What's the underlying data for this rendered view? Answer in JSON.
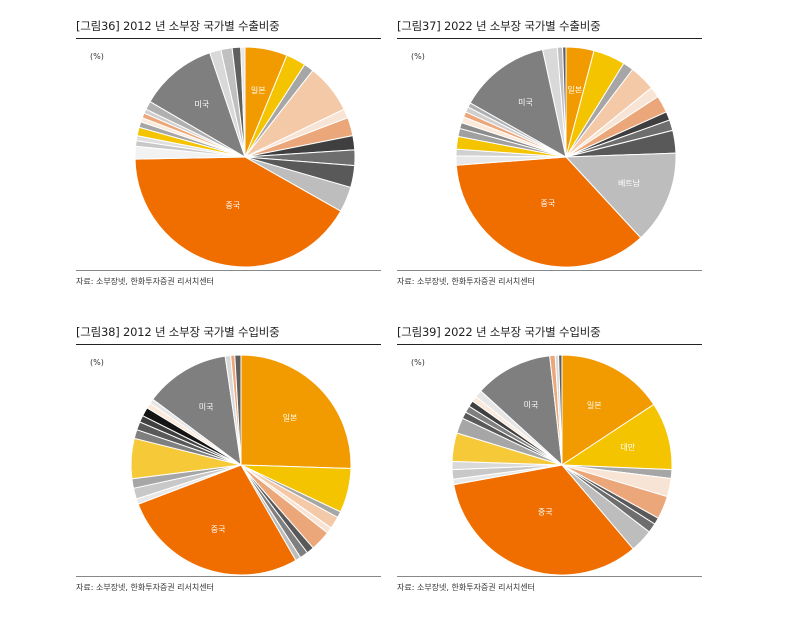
{
  "chart_data": [
    {
      "type": "pie",
      "title": "[그림36]  2012 년 소부장 국가별 수출비중",
      "unit": "(%)",
      "source": "자료: 소부장넷, 한화투자증권 리서치센터",
      "slices": [
        {
          "label": "일본",
          "value": 6.0,
          "color": "#f29b00"
        },
        {
          "label": "",
          "value": 2.8,
          "color": "#f5c400"
        },
        {
          "label": "",
          "value": 1.4,
          "color": "#a6a6a6"
        },
        {
          "label": "",
          "value": 7.0,
          "color": "#f4c9a8"
        },
        {
          "label": "",
          "value": 1.3,
          "color": "#f8e4d4"
        },
        {
          "label": "",
          "value": 2.6,
          "color": "#eba77a"
        },
        {
          "label": "",
          "value": 2.0,
          "color": "#3f3f3f"
        },
        {
          "label": "",
          "value": 2.2,
          "color": "#6e6e6e"
        },
        {
          "label": "",
          "value": 3.1,
          "color": "#595959"
        },
        {
          "label": "",
          "value": 3.6,
          "color": "#bdbdbd"
        },
        {
          "label": "중국",
          "value": 40.0,
          "color": "#f06e00"
        },
        {
          "label": "",
          "value": 1.8,
          "color": "#f2f2f2"
        },
        {
          "label": "",
          "value": 0.8,
          "color": "#c8c8c8"
        },
        {
          "label": "",
          "value": 0.7,
          "color": "#dedede"
        },
        {
          "label": "",
          "value": 1.2,
          "color": "#f5c400"
        },
        {
          "label": "",
          "value": 0.8,
          "color": "#a6a6a6"
        },
        {
          "label": "",
          "value": 0.6,
          "color": "#fbe9da"
        },
        {
          "label": "",
          "value": 0.7,
          "color": "#eba77a"
        },
        {
          "label": "",
          "value": 0.6,
          "color": "#cfcfcf"
        },
        {
          "label": "",
          "value": 1.2,
          "color": "#b0b0b0"
        },
        {
          "label": "미국",
          "value": 11.0,
          "color": "#7f7f7f"
        },
        {
          "label": "",
          "value": 1.6,
          "color": "#d9d9d9"
        },
        {
          "label": "",
          "value": 1.6,
          "color": "#c0c0c0"
        },
        {
          "label": "",
          "value": 1.2,
          "color": "#5f5f5f"
        },
        {
          "label": "",
          "value": 0.6,
          "color": "#e6e6e6"
        }
      ]
    },
    {
      "type": "pie",
      "title": "[그림37]  2022 년 소부장 국가별 수출비중",
      "unit": "(%)",
      "source": "자료: 소부장넷, 한화투자증권 리서치센터",
      "slices": [
        {
          "label": "일본",
          "value": 4.2,
          "color": "#f29b00"
        },
        {
          "label": "",
          "value": 4.8,
          "color": "#f5c400"
        },
        {
          "label": "",
          "value": 1.6,
          "color": "#a6a6a6"
        },
        {
          "label": "",
          "value": 3.9,
          "color": "#f4c9a8"
        },
        {
          "label": "",
          "value": 1.6,
          "color": "#f8e4d4"
        },
        {
          "label": "",
          "value": 2.6,
          "color": "#eba77a"
        },
        {
          "label": "",
          "value": 1.3,
          "color": "#3f3f3f"
        },
        {
          "label": "",
          "value": 1.6,
          "color": "#6e6e6e"
        },
        {
          "label": "",
          "value": 3.4,
          "color": "#595959"
        },
        {
          "label": "베트남",
          "value": 14.0,
          "color": "#bdbdbd"
        },
        {
          "label": "중국",
          "value": 36.5,
          "color": "#f06e00"
        },
        {
          "label": "",
          "value": 1.4,
          "color": "#e8e8e8"
        },
        {
          "label": "",
          "value": 1.0,
          "color": "#d0d0d0"
        },
        {
          "label": "",
          "value": 1.9,
          "color": "#f5c400"
        },
        {
          "label": "",
          "value": 1.2,
          "color": "#a0a0a0"
        },
        {
          "label": "",
          "value": 0.9,
          "color": "#8c8c8c"
        },
        {
          "label": "",
          "value": 0.9,
          "color": "#fbe9da"
        },
        {
          "label": "",
          "value": 0.8,
          "color": "#eba77a"
        },
        {
          "label": "",
          "value": 0.8,
          "color": "#cfcfcf"
        },
        {
          "label": "",
          "value": 0.7,
          "color": "#b0b0b0"
        },
        {
          "label": "미국",
          "value": 13.7,
          "color": "#7f7f7f"
        },
        {
          "label": "",
          "value": 2.2,
          "color": "#d9d9d9"
        },
        {
          "label": "",
          "value": 0.8,
          "color": "#c0c0c0"
        },
        {
          "label": "",
          "value": 0.5,
          "color": "#5f5f5f"
        }
      ]
    },
    {
      "type": "pie",
      "title": "[그림38]  2012 년 소부장 국가별 수입비중",
      "unit": "(%)",
      "source": "자료: 소부장넷, 한화투자증권 리서치센터",
      "slices": [
        {
          "label": "일본",
          "value": 25.5,
          "color": "#f29b00"
        },
        {
          "label": "",
          "value": 6.5,
          "color": "#f5c400"
        },
        {
          "label": "",
          "value": 0.9,
          "color": "#a6a6a6"
        },
        {
          "label": "",
          "value": 1.8,
          "color": "#f4c9a8"
        },
        {
          "label": "",
          "value": 0.9,
          "color": "#f8e4d4"
        },
        {
          "label": "",
          "value": 3.0,
          "color": "#eba77a"
        },
        {
          "label": "",
          "value": 1.1,
          "color": "#595959"
        },
        {
          "label": "",
          "value": 1.2,
          "color": "#7f7f7f"
        },
        {
          "label": "",
          "value": 0.8,
          "color": "#bdbdbd"
        },
        {
          "label": "중국",
          "value": 27.5,
          "color": "#f06e00"
        },
        {
          "label": "",
          "value": 0.8,
          "color": "#e8e8e8"
        },
        {
          "label": "",
          "value": 1.6,
          "color": "#c8c8c8"
        },
        {
          "label": "",
          "value": 1.4,
          "color": "#a6a6a6"
        },
        {
          "label": "",
          "value": 5.9,
          "color": "#f5c938"
        },
        {
          "label": "",
          "value": 1.3,
          "color": "#7f7f7f"
        },
        {
          "label": "",
          "value": 1.2,
          "color": "#595959"
        },
        {
          "label": "",
          "value": 1.0,
          "color": "#3f3f3f"
        },
        {
          "label": "",
          "value": 1.3,
          "color": "#141414"
        },
        {
          "label": "",
          "value": 0.8,
          "color": "#fbe9da"
        },
        {
          "label": "",
          "value": 0.7,
          "color": "#e6e6e6"
        },
        {
          "label": "미국",
          "value": 12.5,
          "color": "#7f7f7f"
        },
        {
          "label": "",
          "value": 0.8,
          "color": "#d9d9d9"
        },
        {
          "label": "",
          "value": 0.6,
          "color": "#eba77a"
        },
        {
          "label": "",
          "value": 0.9,
          "color": "#5f5f5f"
        }
      ]
    },
    {
      "type": "pie",
      "title": "[그림39]  2022 년 소부장 국가별 수입비중",
      "unit": "(%)",
      "source": "자료: 소부장넷, 한화투자증권 리서치센터",
      "slices": [
        {
          "label": "일본",
          "value": 15.8,
          "color": "#f29b00"
        },
        {
          "label": "대만",
          "value": 10.0,
          "color": "#f5c400"
        },
        {
          "label": "",
          "value": 1.3,
          "color": "#a6a6a6"
        },
        {
          "label": "",
          "value": 2.7,
          "color": "#f8e4d4"
        },
        {
          "label": "",
          "value": 3.4,
          "color": "#eba77a"
        },
        {
          "label": "",
          "value": 1.0,
          "color": "#595959"
        },
        {
          "label": "",
          "value": 1.4,
          "color": "#6e6e6e"
        },
        {
          "label": "",
          "value": 3.4,
          "color": "#bdbdbd"
        },
        {
          "label": "중국",
          "value": 33.5,
          "color": "#f06e00"
        },
        {
          "label": "",
          "value": 0.8,
          "color": "#e8e8e8"
        },
        {
          "label": "",
          "value": 1.4,
          "color": "#c8c8c8"
        },
        {
          "label": "",
          "value": 1.2,
          "color": "#d9d9d9"
        },
        {
          "label": "",
          "value": 4.2,
          "color": "#f5c938"
        },
        {
          "label": "",
          "value": 2.3,
          "color": "#a6a6a6"
        },
        {
          "label": "",
          "value": 1.0,
          "color": "#595959"
        },
        {
          "label": "",
          "value": 1.0,
          "color": "#7f7f7f"
        },
        {
          "label": "",
          "value": 0.9,
          "color": "#3f3f3f"
        },
        {
          "label": "",
          "value": 0.8,
          "color": "#fbe9da"
        },
        {
          "label": "",
          "value": 1.1,
          "color": "#e6e6e6"
        },
        {
          "label": "미국",
          "value": 11.5,
          "color": "#7f7f7f"
        },
        {
          "label": "",
          "value": 0.8,
          "color": "#eba77a"
        },
        {
          "label": "",
          "value": 0.5,
          "color": "#d9d9d9"
        },
        {
          "label": "",
          "value": 0.5,
          "color": "#5f5f5f"
        }
      ]
    }
  ]
}
